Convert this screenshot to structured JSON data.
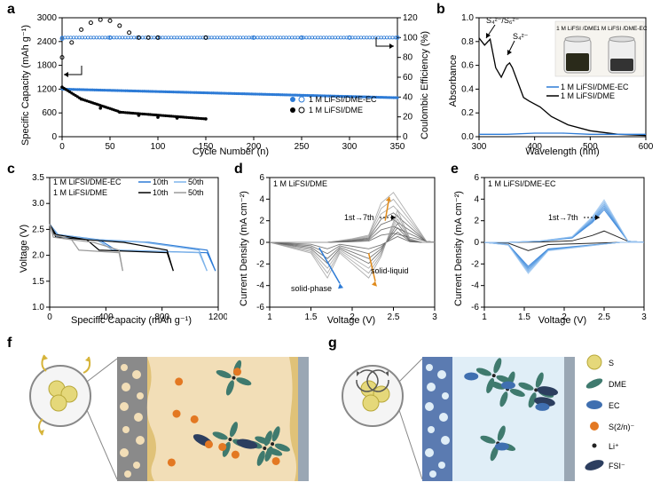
{
  "panel_labels": {
    "a": "a",
    "b": "b",
    "c": "c",
    "d": "d",
    "e": "e",
    "f": "f",
    "g": "g"
  },
  "colors": {
    "dme_ec": "#2d7bd6",
    "dme": "#000000",
    "dme_gray": "#444444",
    "solid_liquid": "#e08a1a",
    "solid_phase": "#2d7bd6",
    "bg": "#ffffff",
    "line_50_ec": "#7fb4ea",
    "line_50_dme": "#9a9a9a",
    "schematic_bg_f": "#f2deb7",
    "schematic_bg_g": "#e0eef7",
    "electrode_dark": "#6c6c6c",
    "electrode_blue": "#5b7bb1",
    "s_yellow": "#e5d87a",
    "dme_green": "#3f7a6e",
    "ec_blue": "#3f6fb0",
    "poly_orange": "#e37822",
    "fsi_navy": "#2c3e5f",
    "li_black": "#222"
  },
  "panel_a": {
    "type": "line-scatter",
    "xlabel": "Cycle Number (n)",
    "ylabel_left": "Specific Capacity (mAh g⁻¹)",
    "ylabel_right": "Coulombic Efficiency (%)",
    "xmin": 0,
    "xmax": 350,
    "xtick_step": 50,
    "ymin": 0,
    "ymax": 3000,
    "ytick_step": 600,
    "y2min": 0,
    "y2max": 120,
    "y2tick_step": 20,
    "legend_items": [
      "1 M LiFSI/DME-EC",
      "1 M LiFSI/DME"
    ],
    "series_ce_ec": [
      [
        0,
        99
      ],
      [
        50,
        100
      ],
      [
        100,
        100
      ],
      [
        150,
        100
      ],
      [
        200,
        100
      ],
      [
        250,
        100
      ],
      [
        300,
        100
      ],
      [
        350,
        100
      ]
    ],
    "series_ce_dme": [
      [
        0,
        80
      ],
      [
        10,
        95
      ],
      [
        20,
        108
      ],
      [
        30,
        115
      ],
      [
        40,
        118
      ],
      [
        50,
        117
      ],
      [
        60,
        112
      ],
      [
        70,
        105
      ],
      [
        80,
        100
      ],
      [
        90,
        100
      ],
      [
        100,
        100
      ],
      [
        150,
        100
      ]
    ],
    "series_cap_ec": [
      [
        0,
        1200
      ],
      [
        50,
        1160
      ],
      [
        100,
        1120
      ],
      [
        150,
        1090
      ],
      [
        200,
        1060
      ],
      [
        250,
        1030
      ],
      [
        300,
        1005
      ],
      [
        350,
        985
      ]
    ],
    "series_cap_dme": [
      [
        0,
        1250
      ],
      [
        20,
        950
      ],
      [
        40,
        720
      ],
      [
        60,
        620
      ],
      [
        80,
        540
      ],
      [
        100,
        490
      ],
      [
        120,
        470
      ],
      [
        150,
        450
      ]
    ]
  },
  "panel_b": {
    "type": "line",
    "xlabel": "Wavelength (nm)",
    "ylabel": "Absorbance",
    "xmin": 300,
    "xmax": 600,
    "xtick_step": 100,
    "ymin": 0,
    "ymax": 1.0,
    "ytick_step": 0.2,
    "legend_items": [
      "1 M LiFSI/DME-EC",
      "1 M LiFSI/DME"
    ],
    "anno1": "S₄²⁻/S₆²⁻",
    "anno2": "S₄²⁻",
    "inset_labels": [
      "1 M LiFSI /DME",
      "1 M LiFSI /DME-EC"
    ],
    "series_ec": [
      [
        300,
        0.02
      ],
      [
        350,
        0.02
      ],
      [
        400,
        0.03
      ],
      [
        450,
        0.03
      ],
      [
        500,
        0.02
      ],
      [
        550,
        0.02
      ],
      [
        600,
        0.02
      ]
    ],
    "series_dme": [
      [
        300,
        0.83
      ],
      [
        305,
        0.8
      ],
      [
        310,
        0.77
      ],
      [
        320,
        0.82
      ],
      [
        330,
        0.58
      ],
      [
        340,
        0.5
      ],
      [
        345,
        0.55
      ],
      [
        350,
        0.6
      ],
      [
        355,
        0.62
      ],
      [
        360,
        0.58
      ],
      [
        380,
        0.33
      ],
      [
        390,
        0.3
      ],
      [
        410,
        0.25
      ],
      [
        430,
        0.17
      ],
      [
        460,
        0.1
      ],
      [
        500,
        0.05
      ],
      [
        550,
        0.02
      ],
      [
        600,
        0.01
      ]
    ]
  },
  "panel_c": {
    "type": "voltage-profile",
    "xlabel": "Specific Capacity (mAh g⁻¹)",
    "ylabel": "Voltage (V)",
    "xmin": 0,
    "xmax": 1200,
    "xtick_step": 400,
    "ymin": 1.0,
    "ymax": 3.5,
    "ytick_step": 0.5,
    "legend_ec": "1 M LiFSI/DME-EC",
    "legend_dme": "1 M LiFSI/DME",
    "label_10": "10th",
    "label_50": "50th"
  },
  "panel_d": {
    "type": "cv",
    "title": "1 M LiFSI/DME",
    "xlabel": "Voltage (V)",
    "ylabel": "Current Density (mA cm⁻²)",
    "xmin": 1.0,
    "xmax": 3.0,
    "xtick_step": 0.5,
    "ymin": -6,
    "ymax": 6,
    "ytick_step": 2,
    "cycles_label": "1st→7th",
    "solid_liquid_label": "solid-liquid",
    "solid_phase_label": "solid-phase"
  },
  "panel_e": {
    "type": "cv",
    "title": "1 M LiFSI/DME-EC",
    "xlabel": "Voltage (V)",
    "ylabel": "Current Density (mA cm⁻²)",
    "xmin": 1.0,
    "xmax": 3.0,
    "xtick_step": 0.5,
    "ymin": -6,
    "ymax": 6,
    "ytick_step": 2,
    "cycles_label": "1st→7th"
  },
  "legend_fg": {
    "items": [
      "S",
      "DME",
      "EC",
      "S(2/n)⁻",
      "Li⁺",
      "FSI⁻"
    ]
  }
}
